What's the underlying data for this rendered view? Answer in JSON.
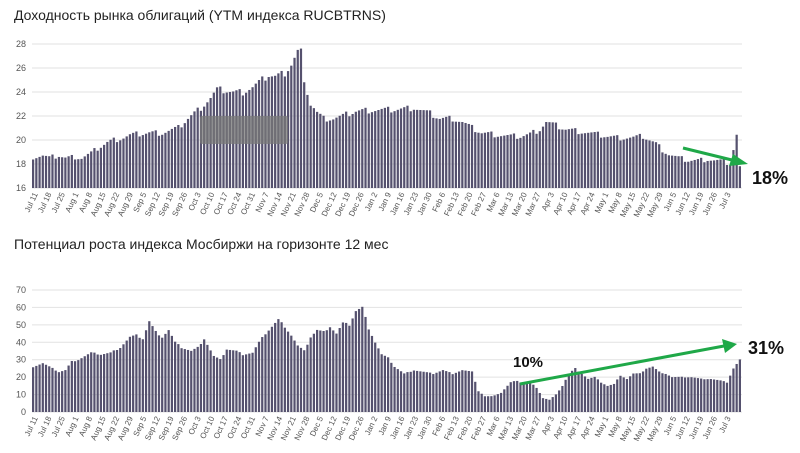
{
  "colors": {
    "bar": "#55516e",
    "trend_arrow": "#1fa848",
    "grid": "#e2e2e2"
  },
  "chart_data": [
    {
      "type": "bar",
      "title": "Доходность рынка облигаций (YTM индекса RUCBTRNS)",
      "ylim": [
        16,
        28
      ],
      "yticks": [
        16,
        18,
        20,
        22,
        24,
        26,
        28
      ],
      "grid": true,
      "tick_labels": [
        "Jul 11",
        "Jul 18",
        "Jul 25",
        "Aug 1",
        "Aug 8",
        "Aug 15",
        "Aug 22",
        "Aug 29",
        "Sep 5",
        "Sep 12",
        "Sep 19",
        "Sep 26",
        "Oct 3",
        "Oct 10",
        "Oct 17",
        "Oct 24",
        "Oct 31",
        "Nov 7",
        "Nov 14",
        "Nov 21",
        "Nov 28",
        "Dec 5",
        "Dec 12",
        "Dec 19",
        "Dec 26",
        "Jan 2",
        "Jan 9",
        "Jan 16",
        "Jan 23",
        "Jan 30",
        "Feb 6",
        "Feb 13",
        "Feb 20",
        "Feb 27",
        "Mar 6",
        "Mar 13",
        "Mar 20",
        "Mar 27",
        "Apr 3",
        "Apr 10",
        "Apr 17",
        "Apr 24",
        "May 1",
        "May 8",
        "May 15",
        "May 22",
        "May 29",
        "Jun 5",
        "Jun 12",
        "Jun 19",
        "Jun 26",
        "Jul 3"
      ],
      "anchors": [
        [
          0,
          18.6
        ],
        [
          3,
          18.7
        ],
        [
          5,
          18.5
        ],
        [
          8,
          18.7
        ],
        [
          10,
          18.5
        ],
        [
          13,
          18.6
        ],
        [
          15,
          18.5
        ],
        [
          18,
          18.9
        ],
        [
          20,
          19.3
        ],
        [
          23,
          19.8
        ],
        [
          25,
          20.0
        ],
        [
          28,
          20.2
        ],
        [
          30,
          20.4
        ],
        [
          33,
          20.5
        ],
        [
          36,
          20.6
        ],
        [
          40,
          20.6
        ],
        [
          45,
          21.0
        ],
        [
          48,
          21.8
        ],
        [
          52,
          22.7
        ],
        [
          55,
          23.5
        ],
        [
          57,
          24.2
        ],
        [
          60,
          24.1
        ],
        [
          62,
          24.0
        ],
        [
          65,
          24.0
        ],
        [
          68,
          24.4
        ],
        [
          71,
          25.0
        ],
        [
          73,
          25.4
        ],
        [
          75,
          25.3
        ],
        [
          78,
          25.6
        ],
        [
          80,
          26.3
        ],
        [
          82,
          27.4
        ],
        [
          83,
          27.4
        ],
        [
          84,
          24.5
        ],
        [
          85,
          24.0
        ],
        [
          86,
          23.0
        ],
        [
          87,
          22.7
        ],
        [
          88,
          22.3
        ],
        [
          90,
          21.8
        ],
        [
          93,
          21.8
        ],
        [
          96,
          22.0
        ],
        [
          100,
          22.4
        ],
        [
          105,
          22.5
        ],
        [
          110,
          22.5
        ],
        [
          115,
          22.6
        ],
        [
          118,
          22.7
        ],
        [
          120,
          22.5
        ],
        [
          123,
          22.2
        ],
        [
          126,
          21.8
        ],
        [
          130,
          21.8
        ],
        [
          133,
          21.5
        ],
        [
          136,
          21.0
        ],
        [
          139,
          20.6
        ],
        [
          142,
          20.5
        ],
        [
          145,
          20.4
        ],
        [
          148,
          20.3
        ],
        [
          151,
          20.3
        ],
        [
          154,
          20.5
        ],
        [
          157,
          20.9
        ],
        [
          159,
          21.5
        ],
        [
          161,
          21.3
        ],
        [
          165,
          20.9
        ],
        [
          170,
          20.7
        ],
        [
          174,
          20.5
        ],
        [
          178,
          20.3
        ],
        [
          181,
          20.2
        ],
        [
          186,
          20.2
        ],
        [
          189,
          20.3
        ],
        [
          191,
          20.0
        ],
        [
          193,
          19.7
        ],
        [
          195,
          19.2
        ],
        [
          197,
          18.8
        ],
        [
          200,
          18.5
        ],
        [
          203,
          18.3
        ],
        [
          206,
          18.3
        ],
        [
          209,
          18.4
        ],
        [
          211,
          18.3
        ],
        [
          214,
          18.2
        ],
        [
          216,
          18.0
        ],
        [
          218,
          20.4
        ],
        [
          219,
          17.7
        ]
      ],
      "annotation": "18%"
    },
    {
      "type": "bar",
      "title": "Потенциал роста индекса Мосбиржи на горизонте 12 мес",
      "ylim": [
        0,
        70
      ],
      "yticks": [
        0,
        10,
        20,
        30,
        40,
        50,
        60,
        70
      ],
      "grid": true,
      "tick_labels": [
        "Jul 11",
        "Jul 18",
        "Jul 25",
        "Aug 1",
        "Aug 8",
        "Aug 15",
        "Aug 22",
        "Aug 29",
        "Sep 5",
        "Sep 12",
        "Sep 19",
        "Sep 26",
        "Oct 3",
        "Oct 10",
        "Oct 17",
        "Oct 24",
        "Oct 31",
        "Nov 7",
        "Nov 14",
        "Nov 21",
        "Nov 28",
        "Dec 5",
        "Dec 12",
        "Dec 19",
        "Dec 26",
        "Jan 2",
        "Jan 9",
        "Jan 16",
        "Jan 23",
        "Jan 30",
        "Feb 6",
        "Feb 13",
        "Feb 20",
        "Feb 27",
        "Mar 6",
        "Mar 13",
        "Mar 20",
        "Mar 27",
        "Apr 3",
        "Apr 10",
        "Apr 17",
        "Apr 24",
        "May 1",
        "May 8",
        "May 15",
        "May 22",
        "May 29",
        "Jun 5",
        "Jun 12",
        "Jun 19",
        "Jun 26",
        "Jul 3"
      ],
      "anchors": [
        [
          0,
          26
        ],
        [
          3,
          28
        ],
        [
          5,
          26
        ],
        [
          8,
          23
        ],
        [
          10,
          24
        ],
        [
          12,
          29
        ],
        [
          14,
          30
        ],
        [
          16,
          32
        ],
        [
          18,
          34
        ],
        [
          21,
          33
        ],
        [
          24,
          34
        ],
        [
          27,
          37
        ],
        [
          30,
          43
        ],
        [
          32,
          44
        ],
        [
          34,
          42
        ],
        [
          36,
          52
        ],
        [
          38,
          46
        ],
        [
          40,
          43
        ],
        [
          42,
          47
        ],
        [
          44,
          40
        ],
        [
          46,
          37
        ],
        [
          49,
          35
        ],
        [
          51,
          37
        ],
        [
          53,
          42
        ],
        [
          56,
          32
        ],
        [
          58,
          30
        ],
        [
          60,
          36
        ],
        [
          63,
          35
        ],
        [
          65,
          33
        ],
        [
          68,
          34
        ],
        [
          70,
          40
        ],
        [
          72,
          45
        ],
        [
          74,
          49
        ],
        [
          76,
          53
        ],
        [
          78,
          49
        ],
        [
          80,
          44
        ],
        [
          82,
          38
        ],
        [
          84,
          35
        ],
        [
          86,
          43
        ],
        [
          88,
          47
        ],
        [
          90,
          46
        ],
        [
          92,
          49
        ],
        [
          94,
          45
        ],
        [
          96,
          51
        ],
        [
          98,
          50
        ],
        [
          100,
          58
        ],
        [
          102,
          60
        ],
        [
          104,
          48
        ],
        [
          106,
          40
        ],
        [
          108,
          33
        ],
        [
          110,
          31
        ],
        [
          112,
          26
        ],
        [
          115,
          22
        ],
        [
          118,
          24
        ],
        [
          121,
          23
        ],
        [
          124,
          22
        ],
        [
          127,
          24
        ],
        [
          130,
          22
        ],
        [
          133,
          24
        ],
        [
          136,
          23
        ],
        [
          138,
          12
        ],
        [
          140,
          9
        ],
        [
          142,
          9
        ],
        [
          145,
          11
        ],
        [
          148,
          17
        ],
        [
          150,
          18
        ],
        [
          152,
          16
        ],
        [
          154,
          17
        ],
        [
          156,
          14
        ],
        [
          158,
          8
        ],
        [
          160,
          7
        ],
        [
          162,
          10
        ],
        [
          164,
          15
        ],
        [
          166,
          22
        ],
        [
          168,
          25
        ],
        [
          170,
          22
        ],
        [
          172,
          19
        ],
        [
          174,
          20
        ],
        [
          176,
          17
        ],
        [
          178,
          15
        ],
        [
          180,
          16
        ],
        [
          182,
          21
        ],
        [
          184,
          19
        ],
        [
          186,
          22
        ],
        [
          188,
          22
        ],
        [
          190,
          25
        ],
        [
          192,
          26
        ],
        [
          194,
          23
        ],
        [
          196,
          22
        ],
        [
          198,
          20
        ],
        [
          201,
          20
        ],
        [
          204,
          20
        ],
        [
          207,
          19
        ],
        [
          210,
          19
        ],
        [
          213,
          18
        ],
        [
          215,
          17
        ],
        [
          217,
          25
        ],
        [
          219,
          30
        ]
      ],
      "annotation_left": "10%",
      "annotation_right": "31%"
    }
  ]
}
